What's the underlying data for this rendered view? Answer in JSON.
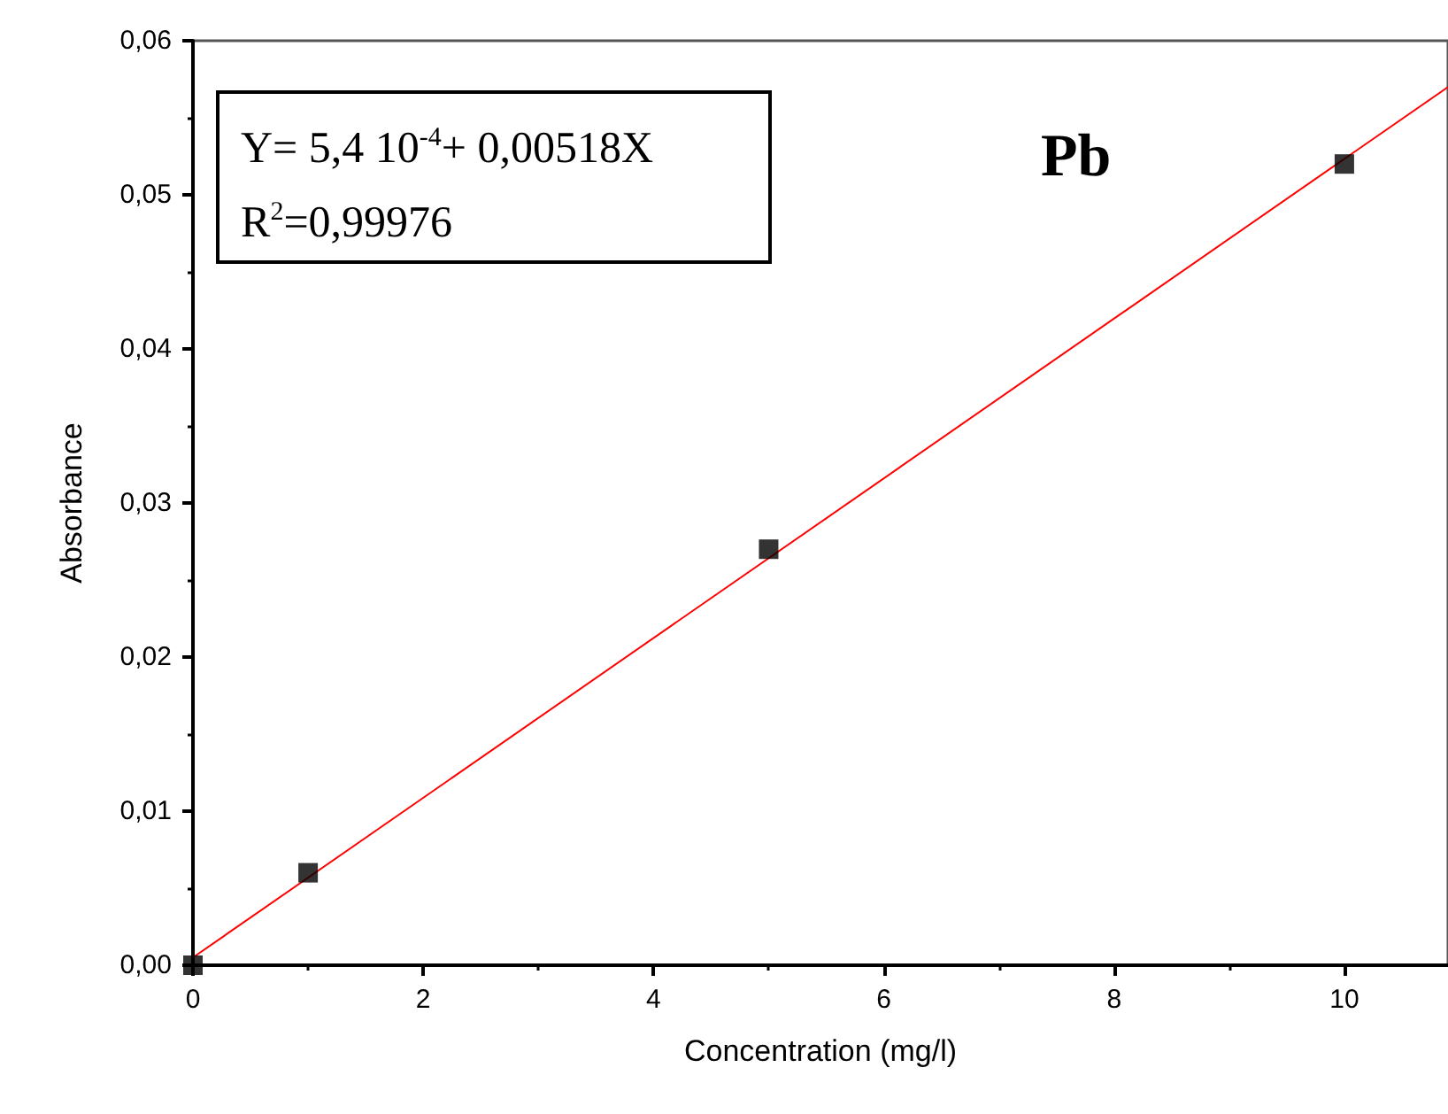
{
  "chart_data": {
    "type": "scatter",
    "xlabel": "Concentration (mg/l)",
    "ylabel": "Absorbance",
    "annotations": [
      "Y= 5,4 10$^{-4}$+ 0,00518X",
      "R$^{2}$=0,99976",
      "Pb"
    ],
    "series": [
      {
        "color": "#000000",
        "marker": "square",
        "x": [
          0,
          1,
          5,
          10
        ],
        "values": [
          0,
          0.006,
          0.027,
          0.052
        ]
      },
      {
        "type": "line",
        "color": "#ff0000",
        "marker": "none",
        "line_style": "solid",
        "x": [
          0,
          10.9
        ],
        "values": [
          0.0005,
          0.057
        ]
      }
    ],
    "xlim": [
      0,
      10.9
    ],
    "xticks": [
      0,
      2,
      4,
      6,
      8,
      10
    ],
    "ylim": [
      0,
      0.06
    ],
    "yticks": [
      {
        "value": 0,
        "label": "0,00"
      },
      {
        "value": 0.01,
        "label": "0,01"
      },
      {
        "value": 0.02,
        "label": "0,02"
      },
      {
        "value": 0.03,
        "label": "0,03"
      },
      {
        "value": 0.04,
        "label": "0,04"
      },
      {
        "value": 0.05,
        "label": "0,05"
      },
      {
        "value": 0.06,
        "label": "0,06"
      }
    ],
    "grid": false
  }
}
